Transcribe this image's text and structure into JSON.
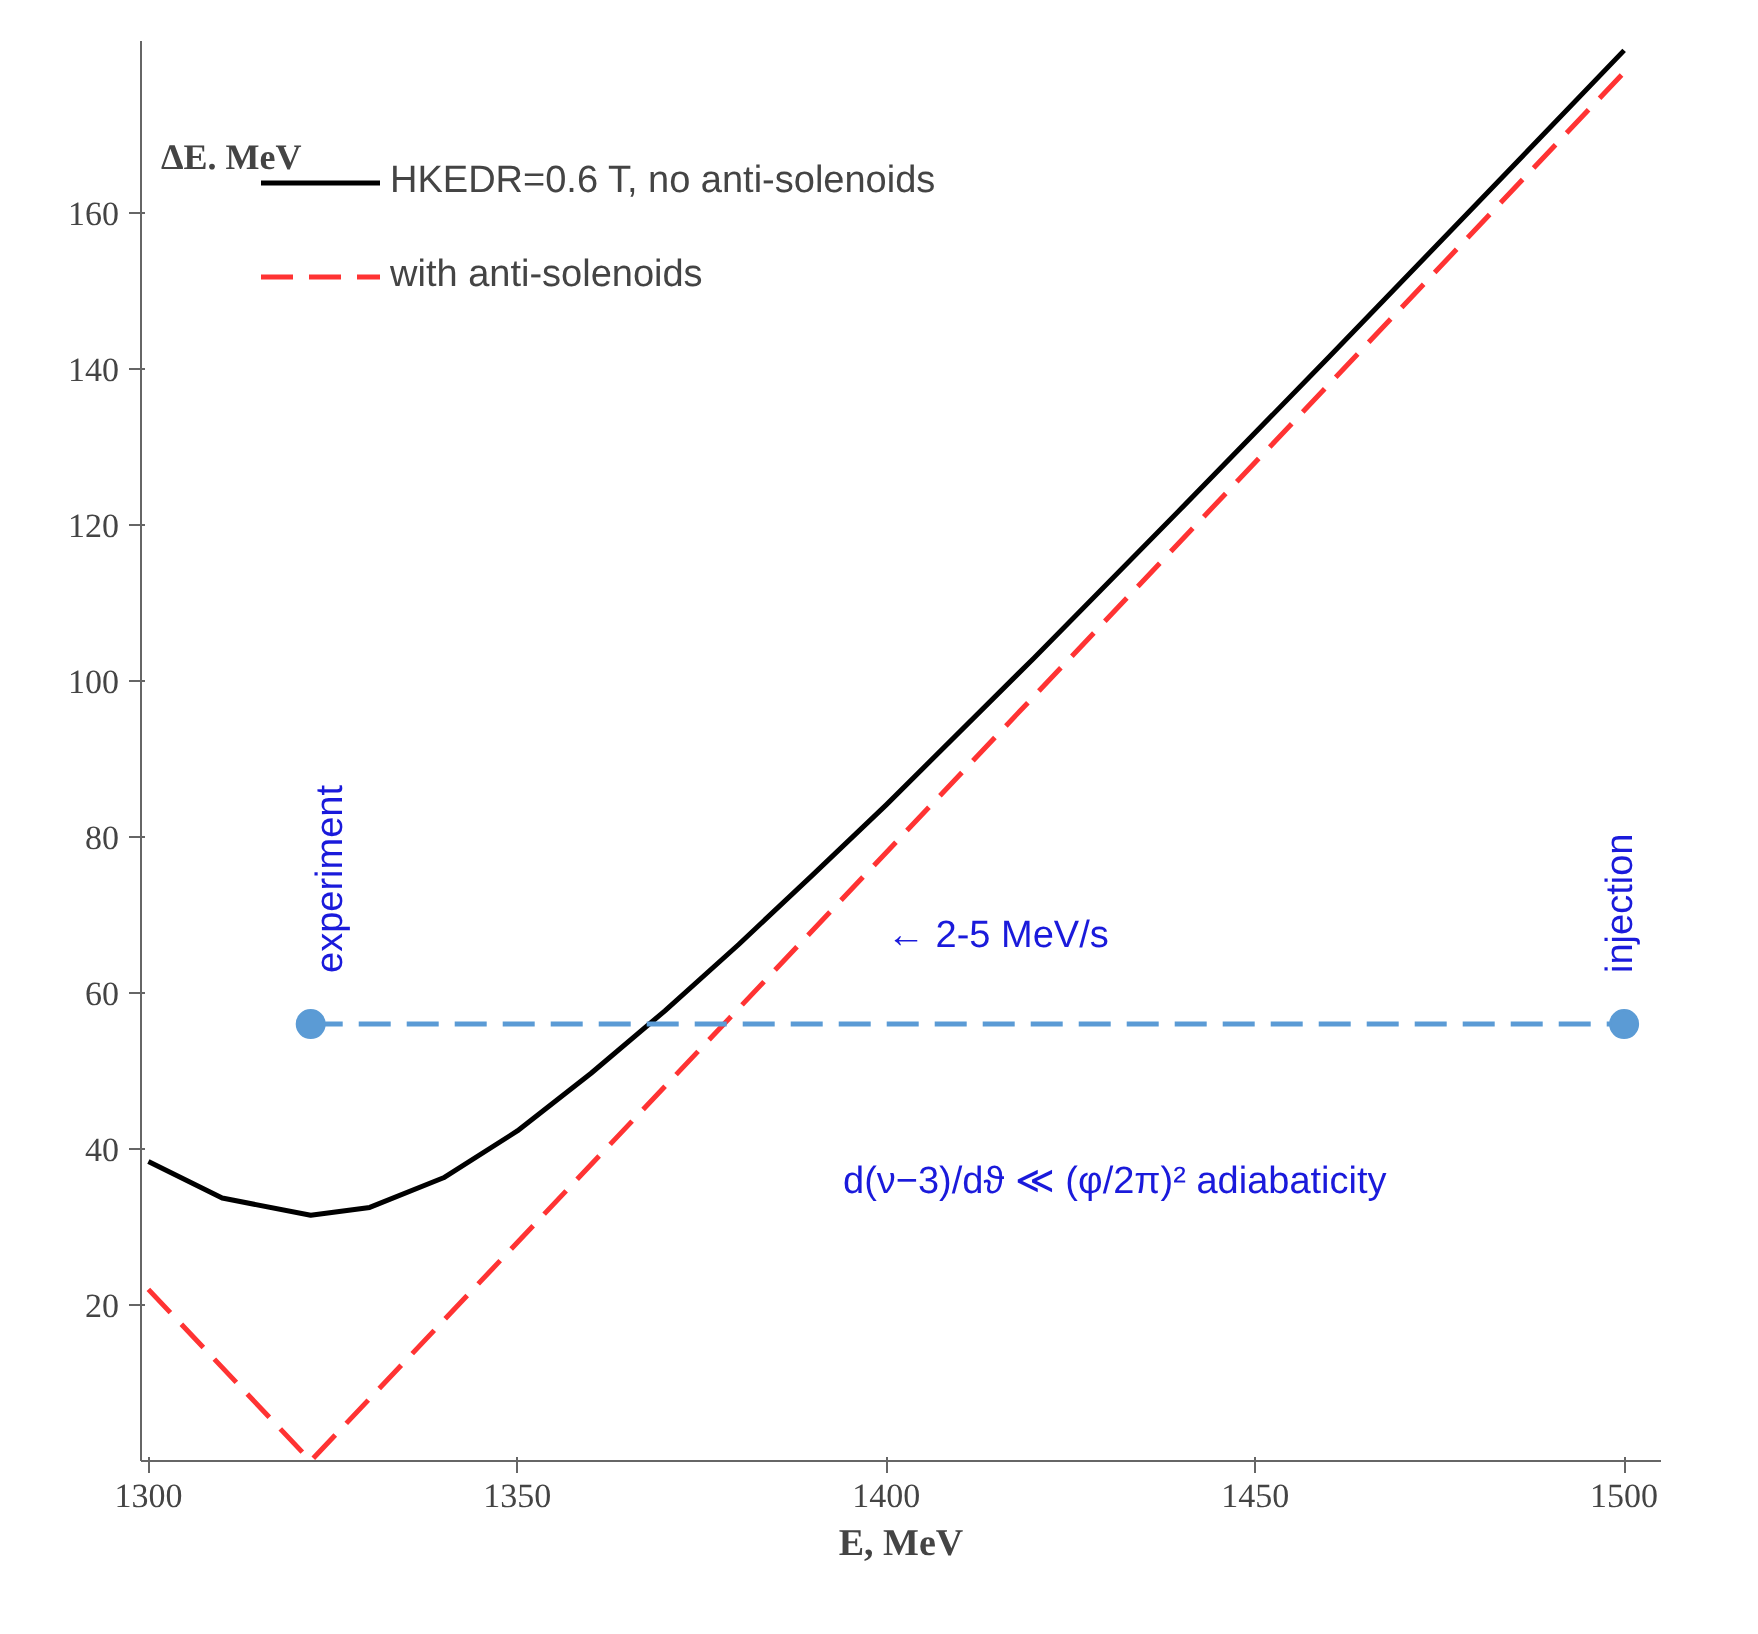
{
  "chart_data": {
    "type": "line",
    "xlabel": "E, MeV",
    "ylabel": "ΔE. MeV",
    "xlim": [
      1299,
      1505
    ],
    "ylim": [
      0,
      182
    ],
    "xticks": [
      1300,
      1350,
      1400,
      1450,
      1500
    ],
    "yticks": [
      20,
      40,
      60,
      80,
      100,
      120,
      140,
      160
    ],
    "grid": false,
    "legend": "top left",
    "series": [
      {
        "name": "HKEDR=0.6 T, no anti-solenoids",
        "color": "#000000",
        "line_style": "solid",
        "x": [
          1300,
          1310,
          1322,
          1330,
          1340,
          1350,
          1360,
          1370,
          1380,
          1390,
          1400,
          1420,
          1440,
          1460,
          1480,
          1500
        ],
        "values": [
          38.4,
          33.7,
          31.5,
          32.5,
          36.3,
          42.3,
          49.7,
          57.7,
          66.2,
          75.1,
          84.1,
          102.9,
          122.1,
          141.5,
          161.1,
          180.8
        ]
      },
      {
        "name": "with anti-solenoids",
        "color": "#ff3333",
        "line_style": "dashed",
        "x": [
          1300,
          1322,
          1500
        ],
        "values": [
          22,
          0,
          178
        ]
      },
      {
        "color": "#5b9bd5",
        "line_style": "dashed",
        "marker": "circle",
        "x": [
          1322,
          1500
        ],
        "values": [
          56,
          56
        ]
      }
    ],
    "annotations": [
      "experiment",
      "injection",
      "← 2-5 MeV/s",
      "d(ν−3)/dϑ ≪ (φ/2π)² adiabaticity"
    ]
  }
}
